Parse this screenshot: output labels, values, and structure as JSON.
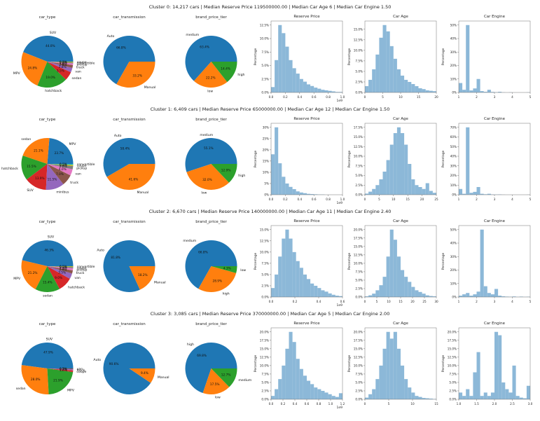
{
  "figure": {
    "background": "#ffffff"
  },
  "colors": {
    "pie": [
      "#1f77b4",
      "#ff7f0e",
      "#2ca02c",
      "#d62728",
      "#9467bd",
      "#8c564b",
      "#e377c2",
      "#7f7f7f",
      "#bcbd22",
      "#17becf"
    ],
    "hist_fill": "#8cb8d8",
    "axis": "#707070",
    "text": "#262626"
  },
  "clusters": [
    {
      "title": "Cluster 0: 14,217 cars | Median Reserve Price 119500000.00 | Median Car Age 6 | Median Car Engine 1.50"
    },
    {
      "title": "Cluster 1: 6,409 cars | Median Reserve Price 65000000.00 | Median Car Age 12 | Median Car Engine 1.50"
    },
    {
      "title": "Cluster 2: 6,670 cars | Median Reserve Price 140000000.00 | Median Car Age 11 | Median Car Engine 2.40"
    },
    {
      "title": "Cluster 3: 3,085 cars | Median Reserve Price 370000000.00 | Median Car Age 5 | Median Car Engine 2.00"
    }
  ],
  "chart_data": [
    {
      "cluster": 0,
      "type": "pie",
      "title": "car_type",
      "labels": [
        "SUV",
        "MPV",
        "hatchback",
        "sedan",
        "van",
        "truck",
        "pickup",
        "convertible",
        "coupe"
      ],
      "values": [
        44.0,
        24.8,
        19.0,
        5.5,
        2.8,
        1.8,
        1.0,
        0.6,
        0.5
      ]
    },
    {
      "cluster": 0,
      "type": "pie",
      "title": "car_transmission",
      "labels": [
        "Auto",
        "Manual"
      ],
      "values": [
        66.8,
        33.2
      ]
    },
    {
      "cluster": 0,
      "type": "pie",
      "title": "brand_price_tier",
      "labels": [
        "medium",
        "low",
        "high"
      ],
      "values": [
        63.4,
        22.2,
        14.4
      ]
    },
    {
      "cluster": 0,
      "type": "histogram",
      "title": "Reserve Price",
      "ylabel": "Percentage",
      "x_min": 0,
      "x_max": 1.0,
      "x_ticks": [
        0,
        0.2,
        0.4,
        0.6,
        0.8,
        1.0
      ],
      "x_tick_labels": [
        "0.0",
        "0.2",
        "0.4",
        "0.6",
        "0.8",
        "1.0"
      ],
      "y_tick_step": 2.5,
      "offset_text": "1e9",
      "values": [
        1.0,
        6.0,
        12.5,
        11.0,
        8.5,
        6.0,
        4.5,
        3.5,
        2.5,
        2.0,
        1.5,
        1.2,
        0.9,
        0.7,
        0.5,
        0.4,
        0.3,
        0.2,
        0.1,
        0.1
      ]
    },
    {
      "cluster": 0,
      "type": "histogram",
      "title": "Car Age",
      "ylabel": "Percentage",
      "x_min": 0,
      "x_max": 20,
      "x_ticks": [
        0,
        5,
        10,
        15,
        20
      ],
      "x_tick_labels": [
        "0",
        "5",
        "10",
        "15",
        "20"
      ],
      "y_tick_step": 2.5,
      "values": [
        1.5,
        3.0,
        5.5,
        9.0,
        13.0,
        16.0,
        14.5,
        11.0,
        8.0,
        5.5,
        4.0,
        3.0,
        2.5,
        2.0,
        1.5,
        1.0,
        0.8,
        0.5,
        0.4,
        0.3
      ]
    },
    {
      "cluster": 0,
      "type": "histogram",
      "title": "Car Engine",
      "ylabel": "Percentage",
      "x_min": 1,
      "x_max": 5,
      "x_ticks": [
        1,
        2,
        3,
        4,
        5
      ],
      "x_tick_labels": [
        "1",
        "2",
        "3",
        "4",
        "5"
      ],
      "y_tick_step": 10,
      "values": [
        7.0,
        2.0,
        50.0,
        1.5,
        3.0,
        10.0,
        1.0,
        0.5,
        2.0,
        0.4,
        0.2,
        0.5,
        0.1,
        0,
        0.1,
        0,
        0,
        0,
        0,
        0.1
      ]
    },
    {
      "cluster": 1,
      "type": "pie",
      "title": "car_type",
      "labels": [
        "MPV",
        "sedan",
        "hatchback",
        "SUV",
        "minibus",
        "truck",
        "van",
        "pickup",
        "coupe",
        "convertible"
      ],
      "values": [
        23.7,
        21.1,
        15.5,
        13.9,
        11.5,
        7.0,
        4.0,
        2.0,
        0.8,
        0.5
      ]
    },
    {
      "cluster": 1,
      "type": "pie",
      "title": "car_transmission",
      "labels": [
        "Auto",
        "Manual"
      ],
      "values": [
        58.4,
        41.6
      ]
    },
    {
      "cluster": 1,
      "type": "pie",
      "title": "brand_price_tier",
      "labels": [
        "medium",
        "low",
        "high"
      ],
      "values": [
        55.1,
        32.0,
        12.9
      ]
    },
    {
      "cluster": 1,
      "type": "histogram",
      "title": "Reserve Price",
      "ylabel": "Percentage",
      "x_min": 0,
      "x_max": 1.0,
      "x_ticks": [
        0,
        0.2,
        0.4,
        0.6,
        0.8,
        1.0
      ],
      "x_tick_labels": [
        "0.0",
        "0.2",
        "0.4",
        "0.6",
        "0.8",
        "1.0"
      ],
      "y_tick_step": 5,
      "offset_text": "1e9",
      "values": [
        18.0,
        30.0,
        14.0,
        8.0,
        5.0,
        3.5,
        2.5,
        1.5,
        1.0,
        0.7,
        0.4,
        0.3,
        0.2,
        0.1,
        0.1,
        0,
        0,
        0,
        0,
        0
      ]
    },
    {
      "cluster": 1,
      "type": "histogram",
      "title": "Car Age",
      "ylabel": "Percentage",
      "x_min": 0,
      "x_max": 25,
      "x_ticks": [
        0,
        5,
        10,
        15,
        20,
        25
      ],
      "x_tick_labels": [
        "0",
        "5",
        "10",
        "15",
        "20",
        "25"
      ],
      "y_tick_step": 2.5,
      "values": [
        0.3,
        0.8,
        1.5,
        2.5,
        4.0,
        6.0,
        9.0,
        13.0,
        16.0,
        17.5,
        16.0,
        13.0,
        8.0,
        4.0,
        2.5,
        2.0,
        1.5,
        3.0,
        1.0,
        0.5
      ]
    },
    {
      "cluster": 1,
      "type": "histogram",
      "title": "Car Engine",
      "ylabel": "Percentage",
      "x_min": 1,
      "x_max": 5,
      "x_ticks": [
        1,
        2,
        3,
        4,
        5
      ],
      "x_tick_labels": [
        "1",
        "2",
        "3",
        "4",
        "5"
      ],
      "y_tick_step": 10,
      "values": [
        6.0,
        1.0,
        70.0,
        2.0,
        3.0,
        8.0,
        1.0,
        0.5,
        1.0,
        0.3,
        0.2,
        0.3,
        0.1,
        0,
        0,
        0,
        0,
        0,
        0,
        0.1
      ]
    },
    {
      "cluster": 2,
      "type": "pie",
      "title": "car_type",
      "labels": [
        "SUV",
        "MPV",
        "sedan",
        "hatchback",
        "van",
        "truck",
        "pickup",
        "coupe",
        "convertible"
      ],
      "values": [
        46.3,
        21.2,
        15.4,
        9.0,
        3.5,
        2.0,
        1.3,
        0.8,
        0.5
      ]
    },
    {
      "cluster": 2,
      "type": "pie",
      "title": "car_transmission",
      "labels": [
        "Auto",
        "Manual"
      ],
      "values": [
        81.8,
        18.2
      ]
    },
    {
      "cluster": 2,
      "type": "pie",
      "title": "brand_price_tier",
      "labels": [
        "medium",
        "high",
        "low"
      ],
      "values": [
        66.8,
        28.9,
        4.3
      ]
    },
    {
      "cluster": 2,
      "type": "histogram",
      "title": "Reserve Price",
      "ylabel": "Percentage",
      "x_min": 0,
      "x_max": 0.6,
      "x_ticks": [
        0,
        0.2,
        0.4,
        0.6
      ],
      "x_tick_labels": [
        "0.0",
        "0.2",
        "0.4",
        "0.6"
      ],
      "y_tick_step": 2.5,
      "offset_text": "1e9",
      "values": [
        2.0,
        5.0,
        9.0,
        13.0,
        15.0,
        13.0,
        10.0,
        8.0,
        6.5,
        5.0,
        4.0,
        3.0,
        2.5,
        2.0,
        1.5,
        1.2,
        0.8,
        0.5,
        0.3,
        0.2
      ]
    },
    {
      "cluster": 2,
      "type": "histogram",
      "title": "Car Age",
      "ylabel": "Percentage",
      "x_min": 0,
      "x_max": 30,
      "x_ticks": [
        0,
        5,
        10,
        15,
        20,
        25,
        30
      ],
      "x_tick_labels": [
        "0",
        "5",
        "10",
        "15",
        "20",
        "25",
        "30"
      ],
      "y_tick_step": 2.5,
      "values": [
        0.2,
        0.5,
        1.0,
        2.0,
        3.5,
        6.0,
        12.0,
        20.0,
        17.0,
        12.0,
        8.0,
        6.0,
        4.5,
        3.0,
        2.0,
        1.5,
        1.0,
        0.5,
        0.3,
        0.2
      ]
    },
    {
      "cluster": 2,
      "type": "histogram",
      "title": "Car Engine",
      "ylabel": "Percentage",
      "x_min": 1,
      "x_max": 5,
      "x_ticks": [
        1,
        2,
        3,
        4,
        5
      ],
      "x_tick_labels": [
        "1",
        "2",
        "3",
        "4",
        "5"
      ],
      "y_tick_step": 10,
      "values": [
        1.0,
        2.0,
        3.0,
        1.0,
        2.0,
        4.0,
        50.0,
        8.0,
        3.0,
        2.0,
        6.0,
        1.0,
        0.5,
        0.3,
        0.2,
        0.4,
        0.1,
        0.3,
        0.1,
        0.2
      ]
    },
    {
      "cluster": 3,
      "type": "pie",
      "title": "car_type",
      "labels": [
        "SUV",
        "sedan",
        "MPV",
        "coupe",
        "truck",
        "van"
      ],
      "values": [
        47.9,
        28.0,
        21.9,
        1.0,
        0.7,
        0.5
      ]
    },
    {
      "cluster": 3,
      "type": "pie",
      "title": "car_transmission",
      "labels": [
        "Auto",
        "Manual"
      ],
      "values": [
        90.6,
        9.4
      ]
    },
    {
      "cluster": 3,
      "type": "pie",
      "title": "brand_price_tier",
      "labels": [
        "high",
        "low",
        "medium"
      ],
      "values": [
        69.8,
        17.5,
        12.7
      ]
    },
    {
      "cluster": 3,
      "type": "histogram",
      "title": "Reserve Price",
      "ylabel": "Percentage",
      "x_min": 0,
      "x_max": 1.2,
      "x_ticks": [
        0,
        0.2,
        0.4,
        0.6,
        0.8,
        1.0,
        1.2
      ],
      "x_tick_labels": [
        "0.0",
        "0.2",
        "0.4",
        "0.6",
        "0.8",
        "1.0",
        "1.2"
      ],
      "y_tick_step": 2.5,
      "offset_text": "1e9",
      "values": [
        1.0,
        3.0,
        6.0,
        10.0,
        15.0,
        20.0,
        17.0,
        12.0,
        9.0,
        7.0,
        5.5,
        4.5,
        3.5,
        3.0,
        2.5,
        2.0,
        1.5,
        1.0,
        0.7,
        1.8
      ]
    },
    {
      "cluster": 3,
      "type": "histogram",
      "title": "Car Age",
      "ylabel": "Percentage",
      "x_min": 0,
      "x_max": 15,
      "x_ticks": [
        0,
        5,
        10,
        15
      ],
      "x_tick_labels": [
        "0",
        "5",
        "10",
        "15"
      ],
      "y_tick_step": 2.5,
      "values": [
        0.5,
        1.5,
        3.0,
        6.0,
        10.0,
        15.0,
        20.0,
        18.0,
        20.0,
        15.0,
        10.0,
        6.0,
        3.5,
        2.0,
        1.0,
        0.7,
        0.4,
        0.3,
        0.2,
        0.1
      ]
    },
    {
      "cluster": 3,
      "type": "histogram",
      "title": "Car Engine",
      "ylabel": "Percentage",
      "x_min": 1,
      "x_max": 3,
      "x_ticks": [
        1,
        1.5,
        2,
        2.5,
        3
      ],
      "x_tick_labels": [
        "1.0",
        "1.5",
        "2.0",
        "2.5",
        "3.0"
      ],
      "y_tick_step": 2.5,
      "values": [
        2.0,
        1.0,
        3.0,
        1.0,
        8.0,
        14.0,
        1.0,
        2.0,
        1.0,
        2.0,
        20.0,
        19.0,
        5.0,
        3.0,
        2.0,
        10.0,
        1.0,
        0.5,
        0.3,
        4.0
      ]
    }
  ]
}
